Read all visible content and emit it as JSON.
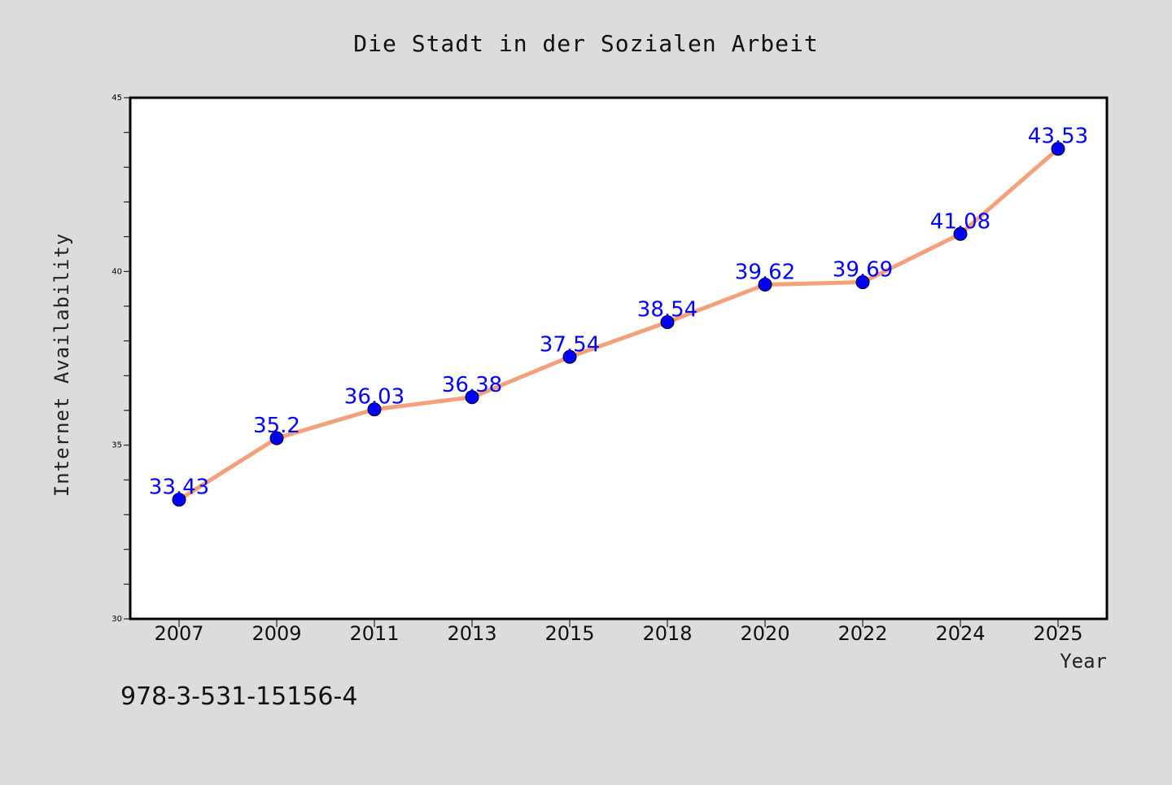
{
  "chart_data": {
    "type": "line",
    "title": "Die Stadt in der Sozialen Arbeit",
    "xlabel": "Year",
    "ylabel": "Internet Availability",
    "categories": [
      "2007",
      "2009",
      "2011",
      "2013",
      "2015",
      "2018",
      "2020",
      "2022",
      "2024",
      "2025"
    ],
    "series": [
      {
        "values": [
          33.43,
          35.2,
          36.03,
          36.38,
          37.54,
          38.54,
          39.62,
          39.69,
          41.08,
          43.53
        ],
        "line_color": "#f4a07a",
        "marker_color": "#0000ff",
        "label_color": "#0000ff"
      }
    ],
    "ylim": [
      30,
      45
    ],
    "yticks": [
      "30",
      "35",
      "40",
      "45"
    ],
    "grid": false,
    "legend": "none"
  },
  "footer": {
    "isbn": "978-3-531-15156-4"
  },
  "colors": {
    "background": "#dcdcdc",
    "plot_background": "#ffffff",
    "axis": "#000000"
  }
}
